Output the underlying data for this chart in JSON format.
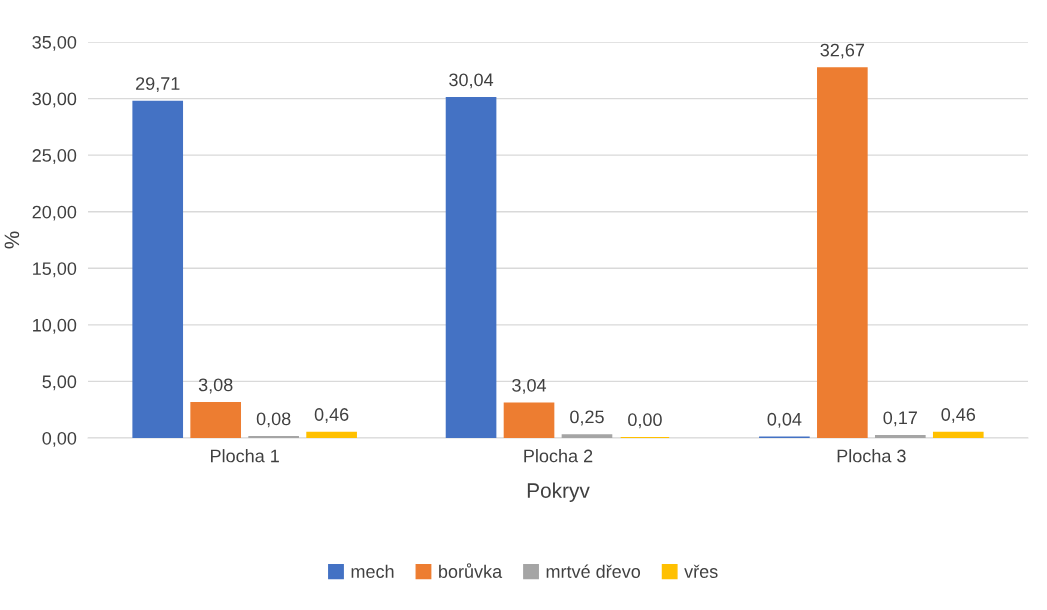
{
  "chart_data": {
    "type": "bar",
    "xlabel": "Pokryv",
    "ylabel": "%",
    "categories": [
      "Plocha 1",
      "Plocha 2",
      "Plocha 3"
    ],
    "series": [
      {
        "name": "mech",
        "color": "#4472c4",
        "values": [
          29.71,
          30.04,
          0.04
        ],
        "value_labels": [
          "29,71",
          "30,04",
          "0,04"
        ]
      },
      {
        "name": "borůvka",
        "color": "#ed7d31",
        "values": [
          3.08,
          3.04,
          32.67
        ],
        "value_labels": [
          "3,08",
          "3,04",
          "32,67"
        ]
      },
      {
        "name": "mrtvé dřevo",
        "color": "#a5a5a5",
        "values": [
          0.08,
          0.25,
          0.17
        ],
        "value_labels": [
          "0,08",
          "0,25",
          "0,17"
        ]
      },
      {
        "name": "vřes",
        "color": "#ffc000",
        "values": [
          0.46,
          0.0,
          0.46
        ],
        "value_labels": [
          "0,46",
          "0,00",
          "0,46"
        ]
      }
    ],
    "ylim": [
      0,
      35
    ],
    "yticks": [
      {
        "value": 0,
        "label": "0,00"
      },
      {
        "value": 5,
        "label": "5,00"
      },
      {
        "value": 10,
        "label": "10,00"
      },
      {
        "value": 15,
        "label": "15,00"
      },
      {
        "value": 20,
        "label": "20,00"
      },
      {
        "value": 25,
        "label": "25,00"
      },
      {
        "value": 30,
        "label": "30,00"
      },
      {
        "value": 35,
        "label": "35,00"
      }
    ],
    "grid": "y",
    "legend": "bottom"
  }
}
